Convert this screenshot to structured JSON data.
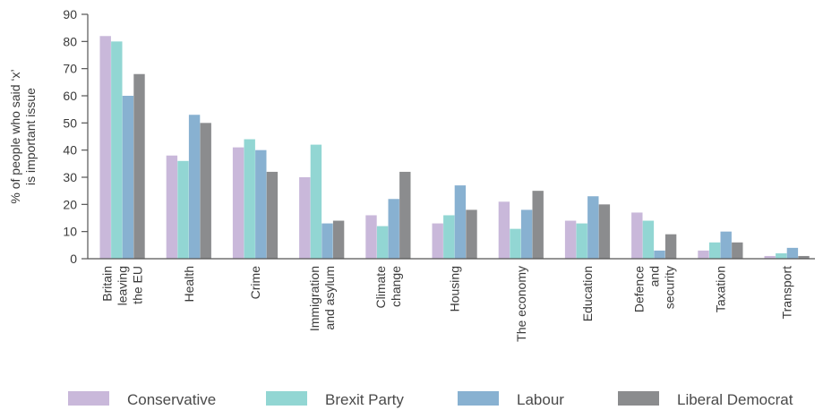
{
  "chart_data": {
    "type": "bar",
    "ylabel_lines": [
      "% of people who said ‘x’",
      "is important issue"
    ],
    "ylim": [
      0,
      90
    ],
    "yticks": [
      "0",
      "10",
      "20",
      "30",
      "40",
      "50",
      "60",
      "70",
      "80",
      "90"
    ],
    "categories": [
      [
        "Britain",
        "leaving",
        "the EU"
      ],
      [
        "Health"
      ],
      [
        "Crime"
      ],
      [
        "Immigration",
        "and asylum"
      ],
      [
        "Climate",
        "change"
      ],
      [
        "Housing"
      ],
      [
        "The economy"
      ],
      [
        "Education"
      ],
      [
        "Defence",
        "and",
        "security"
      ],
      [
        "Taxation"
      ],
      [
        "Transport"
      ]
    ],
    "series": [
      {
        "name": "Conservative",
        "color": "#c9b8da",
        "values": [
          82,
          38,
          41,
          30,
          16,
          13,
          21,
          14,
          17,
          3,
          1
        ]
      },
      {
        "name": "Brexit Party",
        "color": "#92d6d3",
        "values": [
          80,
          36,
          44,
          42,
          12,
          16,
          11,
          13,
          14,
          6,
          2
        ]
      },
      {
        "name": "Labour",
        "color": "#88b1d1",
        "values": [
          60,
          53,
          40,
          13,
          22,
          27,
          18,
          23,
          3,
          10,
          4
        ]
      },
      {
        "name": "Liberal Democrat",
        "color": "#8b8c8e",
        "values": [
          68,
          50,
          32,
          14,
          32,
          18,
          25,
          20,
          9,
          6,
          1
        ]
      }
    ],
    "grid": false,
    "legend_position": "bottom"
  }
}
